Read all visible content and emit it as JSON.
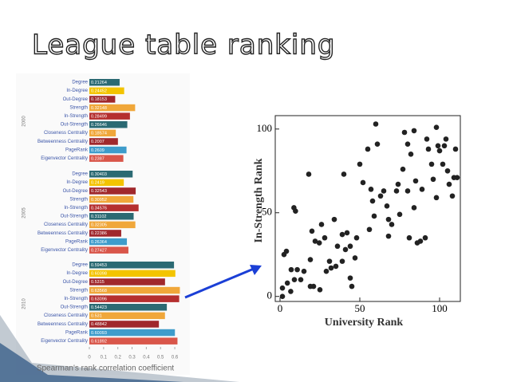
{
  "title": "League table ranking",
  "chart_data": [
    {
      "type": "barh",
      "categories": [
        "Degree",
        "In-Degree",
        "Out-Degree",
        "Strength",
        "In-Strength",
        "Out-Strength",
        "Closeness Centrality",
        "Betweenness Centrality",
        "PageRank",
        "Eigenvector Centrality"
      ],
      "colors": [
        "#2b6a73",
        "#f3c400",
        "#a0282c",
        "#f0a73a",
        "#b52f2f",
        "#2b6a73",
        "#f0a73a",
        "#a0282c",
        "#3e9ccb",
        "#d9564a"
      ],
      "series": [
        {
          "name": "2000",
          "values": [
            0.21264,
            0.24452,
            0.18153,
            0.32148,
            0.28499,
            0.26646,
            0.18574,
            0.2007,
            0.2609,
            0.2387
          ]
        },
        {
          "name": "2005",
          "values": [
            0.30403,
            0.2419,
            0.32543,
            0.30952,
            0.34576,
            0.31102,
            0.32305,
            0.22386,
            0.26364,
            0.27427
          ]
        },
        {
          "name": "2010",
          "values": [
            0.59453,
            0.60398,
            0.5315,
            0.63568,
            0.63096,
            0.54423,
            0.531,
            0.48842,
            0.60093,
            0.61892
          ]
        }
      ],
      "xlim": [
        0,
        0.65
      ],
      "xticks": [
        0,
        0.1,
        0.2,
        0.3,
        0.4,
        0.5,
        0.6
      ],
      "xlabel": "Spearman's rank correlation coefficient"
    },
    {
      "type": "scatter",
      "xlabel": "University Rank",
      "ylabel": "In-Strength Rank",
      "color": "#222222",
      "xlim": [
        -3,
        113
      ],
      "ylim": [
        -3,
        108
      ],
      "xticks": [
        0,
        50,
        100
      ],
      "yticks": [
        0,
        50,
        100
      ],
      "x": [
        1.5,
        1.5,
        4.6,
        2.5,
        4,
        8.7,
        9.7,
        7,
        10.8,
        9,
        6.7,
        13,
        15,
        19,
        18,
        19,
        21,
        22,
        24.6,
        26,
        28,
        29,
        25,
        31,
        32,
        35,
        34,
        36,
        39,
        39,
        40,
        42,
        44,
        45,
        47,
        44,
        48,
        50,
        52,
        55,
        57,
        58,
        59,
        56,
        60,
        61,
        63,
        65,
        67,
        68,
        68,
        70,
        73,
        74,
        77,
        78,
        80,
        80,
        82,
        84,
        85,
        86,
        88,
        84,
        91,
        92,
        93,
        95,
        96,
        98,
        99,
        100,
        102,
        103,
        104,
        105,
        106,
        108,
        110,
        111,
        109,
        98,
        89,
        75,
        81,
        20,
        41
      ],
      "values": [
        5,
        0,
        8,
        25,
        27,
        53,
        51,
        16,
        16,
        10,
        3,
        10,
        15,
        22,
        73,
        6,
        6,
        33,
        32,
        43,
        35,
        15,
        4,
        21,
        17,
        18,
        46,
        30,
        21,
        37,
        73,
        38,
        11,
        6,
        23,
        30,
        35,
        79,
        68,
        88,
        64,
        57,
        48,
        40,
        103,
        91,
        60,
        63,
        54,
        46,
        36,
        43,
        63,
        67,
        76,
        98,
        91,
        63,
        85,
        99,
        69,
        32,
        33,
        53,
        35,
        94,
        88,
        79,
        70,
        101,
        90,
        87,
        79,
        90,
        94,
        75,
        67,
        60,
        88,
        71,
        71,
        59,
        64,
        49,
        35,
        39,
        28
      ]
    }
  ]
}
